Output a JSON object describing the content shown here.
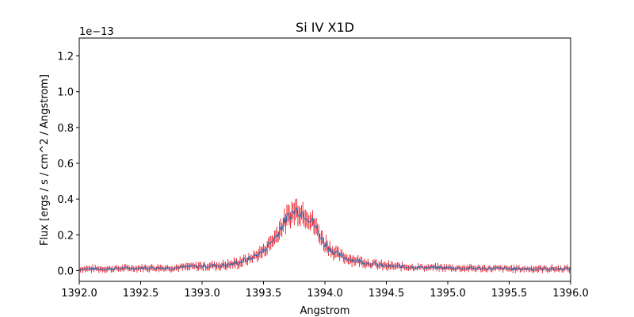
{
  "chart_data": {
    "type": "line",
    "title": "Si IV X1D",
    "xlabel": "Angstrom",
    "ylabel": "Flux [ergs / s / cm^2 / Angstrom]",
    "y_offset_label": "1e−13",
    "xlim": [
      1392.0,
      1396.0
    ],
    "ylim": [
      -0.06,
      1.3
    ],
    "y_scale_factor": 1e-13,
    "grid": false,
    "x_ticks": [
      1392.0,
      1392.5,
      1393.0,
      1393.5,
      1394.0,
      1394.5,
      1395.0,
      1395.5,
      1396.0
    ],
    "x_tick_labels": [
      "1392.0",
      "1392.5",
      "1393.0",
      "1393.5",
      "1394.0",
      "1394.5",
      "1395.0",
      "1395.5",
      "1396.0"
    ],
    "y_ticks": [
      0.0,
      0.2,
      0.4,
      0.6,
      0.8,
      1.0,
      1.2
    ],
    "y_tick_labels": [
      "0.0",
      "0.2",
      "0.4",
      "0.6",
      "0.8",
      "1.0",
      "1.2"
    ],
    "series": [
      {
        "color": "#3b6fb0",
        "error_color": "#e8000b",
        "x": [
          1392.0,
          1392.25,
          1392.5,
          1392.75,
          1393.0,
          1393.2,
          1393.3,
          1393.4,
          1393.5,
          1393.55,
          1393.6,
          1393.65,
          1393.7,
          1393.75,
          1393.78,
          1393.8,
          1393.85,
          1393.9,
          1393.95,
          1394.0,
          1394.05,
          1394.1,
          1394.2,
          1394.3,
          1394.4,
          1394.5,
          1394.7,
          1395.0,
          1395.5,
          1396.0
        ],
        "y": [
          0.01,
          0.01,
          0.015,
          0.015,
          0.025,
          0.03,
          0.045,
          0.07,
          0.11,
          0.15,
          0.19,
          0.25,
          0.3,
          0.33,
          0.34,
          0.33,
          0.31,
          0.27,
          0.21,
          0.15,
          0.12,
          0.09,
          0.065,
          0.05,
          0.035,
          0.025,
          0.02,
          0.015,
          0.01,
          0.01
        ],
        "y_error": [
          0.015,
          0.015,
          0.015,
          0.015,
          0.02,
          0.02,
          0.025,
          0.025,
          0.03,
          0.035,
          0.04,
          0.045,
          0.05,
          0.055,
          0.06,
          0.055,
          0.05,
          0.05,
          0.045,
          0.04,
          0.035,
          0.03,
          0.025,
          0.02,
          0.02,
          0.02,
          0.015,
          0.015,
          0.015,
          0.015
        ]
      }
    ]
  }
}
